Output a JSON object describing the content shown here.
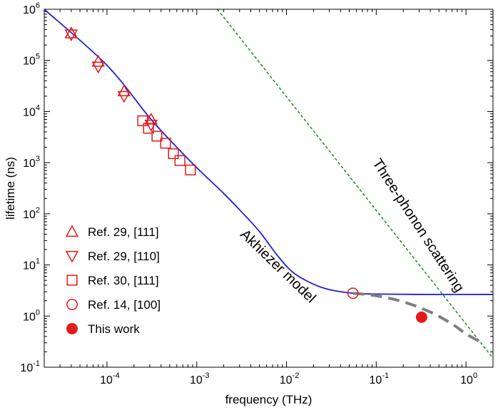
{
  "chart_data": {
    "type": "scatter",
    "xlabel": "frequency (THz)",
    "ylabel": "lifetime (ns)",
    "x_scale": "log",
    "y_scale": "log",
    "xlim": [
      2e-05,
      2
    ],
    "ylim": [
      0.1,
      1000000
    ],
    "x_tick_labels": [
      {
        "value": 0.0001,
        "base": "10",
        "exp": "-4"
      },
      {
        "value": 0.001,
        "base": "10",
        "exp": "-3"
      },
      {
        "value": 0.01,
        "base": "10",
        "exp": "-2"
      },
      {
        "value": 0.1,
        "base": "10",
        "exp": "-1"
      },
      {
        "value": 1,
        "base": "10",
        "exp": "0"
      }
    ],
    "y_tick_labels": [
      {
        "value": 0.1,
        "base": "10",
        "exp": "-1"
      },
      {
        "value": 1,
        "base": "10",
        "exp": "0"
      },
      {
        "value": 10,
        "base": "10",
        "exp": "1"
      },
      {
        "value": 100,
        "base": "10",
        "exp": "2"
      },
      {
        "value": 1000,
        "base": "10",
        "exp": "3"
      },
      {
        "value": 10000,
        "base": "10",
        "exp": "4"
      },
      {
        "value": 100000,
        "base": "10",
        "exp": "5"
      },
      {
        "value": 1000000,
        "base": "10",
        "exp": "6"
      }
    ],
    "grid": false,
    "legend_position": "bottom-left",
    "lines": [
      {
        "label": "Akhiezer model",
        "color": "#1f1fd6",
        "style": "solid",
        "points": [
          [
            2e-05,
            1000000
          ],
          [
            0.0001,
            80000
          ],
          [
            0.0003,
            7500
          ],
          [
            0.0006,
            2000
          ],
          [
            0.001,
            800
          ],
          [
            0.002,
            250
          ],
          [
            0.003,
            120
          ],
          [
            0.005,
            45
          ],
          [
            0.008,
            15
          ],
          [
            0.012,
            7
          ],
          [
            0.02,
            4.2
          ],
          [
            0.03,
            3.3
          ],
          [
            0.055,
            2.8
          ],
          [
            0.1,
            2.7
          ],
          [
            0.3,
            2.65
          ],
          [
            2,
            2.65
          ]
        ]
      },
      {
        "label": "Three-phonon scattering",
        "color": "#1c8a1c",
        "style": "dotted",
        "points": [
          [
            0.0017,
            1000000
          ],
          [
            2,
            0.15
          ]
        ]
      },
      {
        "label": "",
        "color": "#7f7f7f",
        "style": "dashed",
        "points": [
          [
            0.055,
            2.8
          ],
          [
            0.1,
            2.5
          ],
          [
            0.2,
            1.9
          ],
          [
            0.4,
            1.2
          ],
          [
            0.7,
            0.7
          ],
          [
            1,
            0.45
          ],
          [
            1.5,
            0.3
          ]
        ]
      }
    ],
    "series": [
      {
        "name": "Ref. 29, [111]",
        "marker": "triangle-up",
        "color": "#e41a1a",
        "points": [
          [
            4e-05,
            340000
          ],
          [
            8e-05,
            95000
          ],
          [
            0.000155,
            25000
          ],
          [
            0.00031,
            7000
          ]
        ]
      },
      {
        "name": "Ref. 29, [110]",
        "marker": "triangle-down",
        "color": "#e41a1a",
        "points": [
          [
            4e-05,
            320000
          ],
          [
            8e-05,
            75000
          ],
          [
            0.000155,
            20000
          ],
          [
            0.00031,
            5500
          ]
        ]
      },
      {
        "name": "Ref. 30, [111]",
        "marker": "square",
        "color": "#e41a1a",
        "points": [
          [
            0.00025,
            6600
          ],
          [
            0.00029,
            4700
          ],
          [
            0.00036,
            3300
          ],
          [
            0.00045,
            2400
          ],
          [
            0.00055,
            1500
          ],
          [
            0.00065,
            1100
          ],
          [
            0.00085,
            720
          ]
        ]
      },
      {
        "name": "Ref. 14, [100]",
        "marker": "circle-open",
        "color": "#e41a1a",
        "points": [
          [
            0.055,
            2.8
          ]
        ]
      },
      {
        "name": "This work",
        "marker": "circle-filled",
        "color": "#e41a1a",
        "points": [
          [
            0.32,
            0.95
          ]
        ]
      }
    ],
    "annotations": [
      {
        "text": "Akhiezer model",
        "x": 0.003,
        "y": 38,
        "angle": 44
      },
      {
        "text": "Three-phonon scattering",
        "x": 0.09,
        "y": 1000,
        "angle": 57
      }
    ]
  }
}
